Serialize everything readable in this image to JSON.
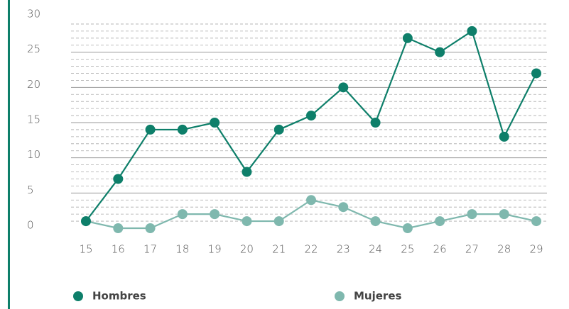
{
  "chart_data": {
    "type": "line",
    "categories": [
      "15",
      "16",
      "17",
      "18",
      "19",
      "20",
      "21",
      "22",
      "23",
      "24",
      "25",
      "26",
      "27",
      "28",
      "29"
    ],
    "series": [
      {
        "name": "Hombres",
        "color": "#0e7f6a",
        "values": [
          1,
          7,
          14,
          14,
          15,
          8,
          14,
          16,
          20,
          15,
          27,
          25,
          28,
          13,
          22
        ]
      },
      {
        "name": "Mujeres",
        "color": "#7fb8ae",
        "values": [
          1,
          0,
          0,
          2,
          2,
          1,
          1,
          4,
          3,
          1,
          0,
          1,
          2,
          2,
          1
        ]
      }
    ],
    "ylim": [
      0,
      30
    ],
    "yticks": [
      0,
      5,
      10,
      15,
      20,
      25,
      30
    ],
    "grid": true,
    "minor_grid": true,
    "legend": "bottom"
  }
}
